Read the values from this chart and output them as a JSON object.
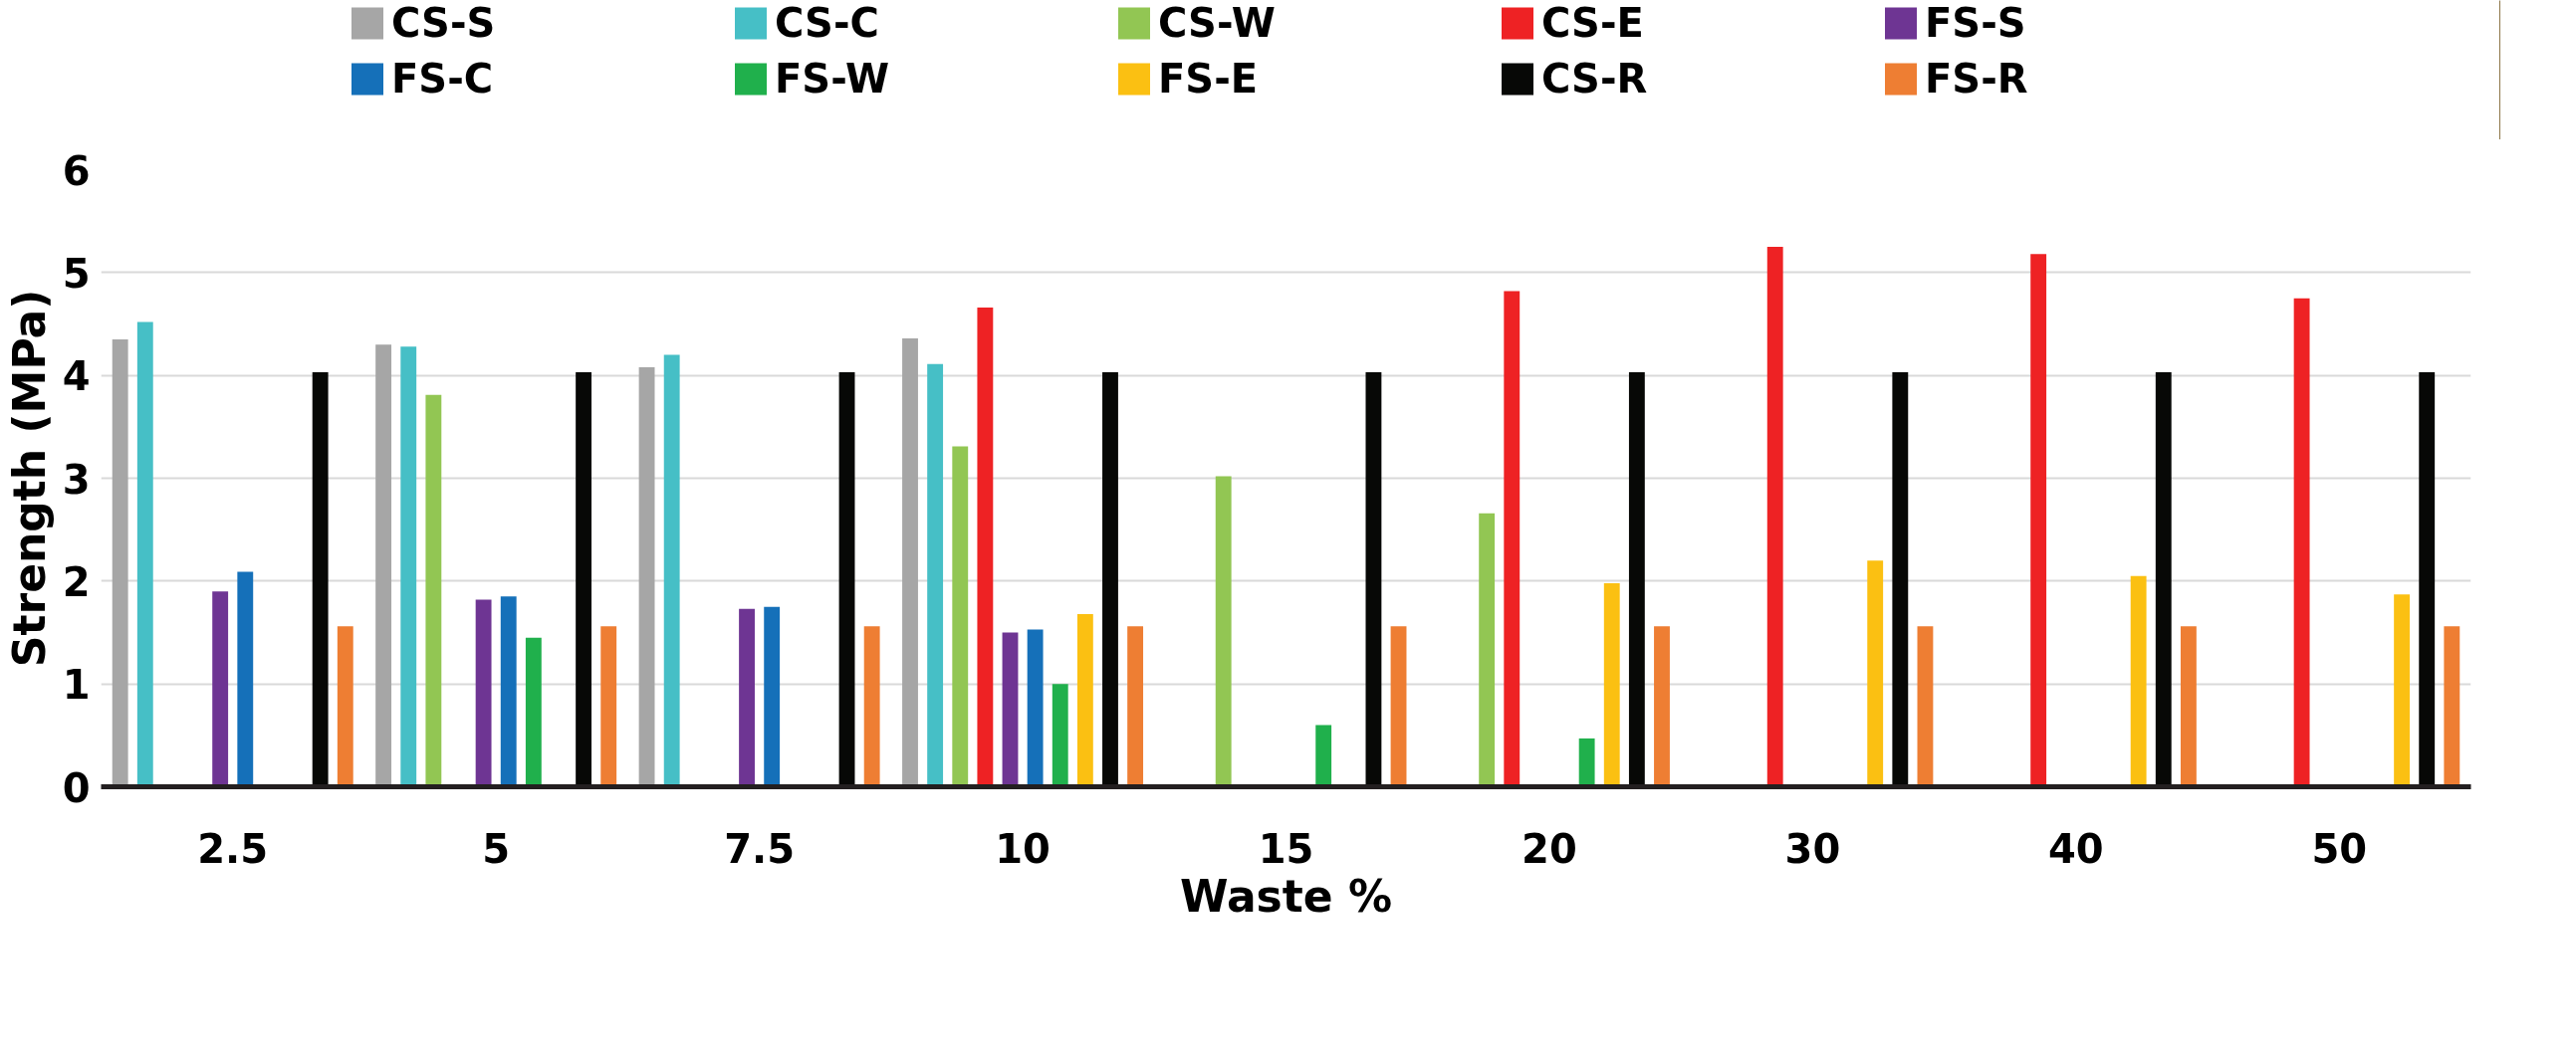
{
  "chart_data": {
    "type": "bar",
    "xlabel": "Waste %",
    "ylabel": "Strength (MPa)",
    "categories": [
      "2.5",
      "5",
      "7.5",
      "10",
      "15",
      "20",
      "30",
      "40",
      "50"
    ],
    "ylim": [
      0,
      6
    ],
    "yticks": [
      0,
      1,
      2,
      3,
      4,
      5,
      6
    ],
    "grid": "y",
    "legend": "top",
    "series": [
      {
        "name": "CS-S",
        "color": "#a6a6a6",
        "values": [
          4.35,
          4.3,
          4.08,
          4.36,
          null,
          null,
          null,
          null,
          null
        ]
      },
      {
        "name": "CS-C",
        "color": "#46bfc6",
        "values": [
          4.52,
          4.28,
          4.2,
          4.11,
          null,
          null,
          null,
          null,
          null
        ]
      },
      {
        "name": "CS-W",
        "color": "#92c653",
        "values": [
          null,
          3.81,
          null,
          3.31,
          3.02,
          2.66,
          null,
          null,
          null
        ]
      },
      {
        "name": "CS-E",
        "color": "#ee2224",
        "values": [
          null,
          null,
          null,
          4.66,
          null,
          4.82,
          5.25,
          5.18,
          4.75
        ]
      },
      {
        "name": "FS-S",
        "color": "#6e3593",
        "values": [
          1.9,
          1.82,
          1.73,
          1.5,
          null,
          null,
          null,
          null,
          null
        ]
      },
      {
        "name": "FS-C",
        "color": "#1570b9",
        "values": [
          2.09,
          1.85,
          1.75,
          1.53,
          null,
          null,
          null,
          null,
          null
        ]
      },
      {
        "name": "FS-W",
        "color": "#20b04c",
        "values": [
          null,
          1.45,
          null,
          1.0,
          0.6,
          0.47,
          null,
          null,
          null
        ]
      },
      {
        "name": "FS-E",
        "color": "#fbc012",
        "values": [
          null,
          null,
          null,
          1.68,
          null,
          1.98,
          2.2,
          2.05,
          1.87
        ]
      },
      {
        "name": "CS-R",
        "color": "#070806",
        "values": [
          4.03,
          4.03,
          4.03,
          4.03,
          4.03,
          4.03,
          4.03,
          4.03,
          4.03
        ]
      },
      {
        "name": "FS-R",
        "color": "#ee7e33",
        "values": [
          1.56,
          1.56,
          1.56,
          1.56,
          1.56,
          1.56,
          1.56,
          1.56,
          1.56
        ]
      }
    ]
  }
}
